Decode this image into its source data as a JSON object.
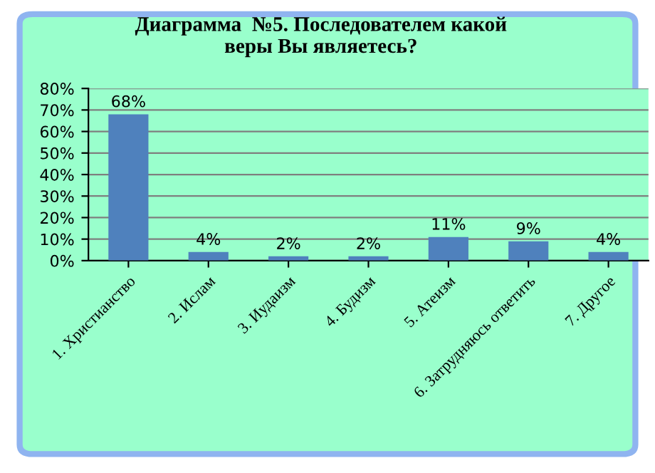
{
  "chart_data": {
    "type": "bar",
    "title": "Диаграмма  №5. Последователем какой\nверы Вы являетесь?",
    "categories": [
      "1. Христианство",
      "2. Ислам",
      "3. Иудаизм",
      "4. Будизм",
      "5. Атеизм",
      "6. Затрудняюсь ответить",
      "7. Другое"
    ],
    "values": [
      68,
      4,
      2,
      2,
      11,
      9,
      4
    ],
    "value_labels": [
      "68%",
      "4%",
      "2%",
      "2%",
      "11%",
      "9%",
      "4%"
    ],
    "color": "#4f81bd",
    "ylim": [
      0,
      80
    ],
    "yticks": [
      {
        "value": 0,
        "label": "0%"
      },
      {
        "value": 10,
        "label": "10%"
      },
      {
        "value": 20,
        "label": "20%"
      },
      {
        "value": 30,
        "label": "30%"
      },
      {
        "value": 40,
        "label": "40%"
      },
      {
        "value": 50,
        "label": "50%"
      },
      {
        "value": 60,
        "label": "60%"
      },
      {
        "value": 70,
        "label": "70%"
      },
      {
        "value": 80,
        "label": "80%"
      }
    ],
    "grid": "y",
    "legend": false
  }
}
